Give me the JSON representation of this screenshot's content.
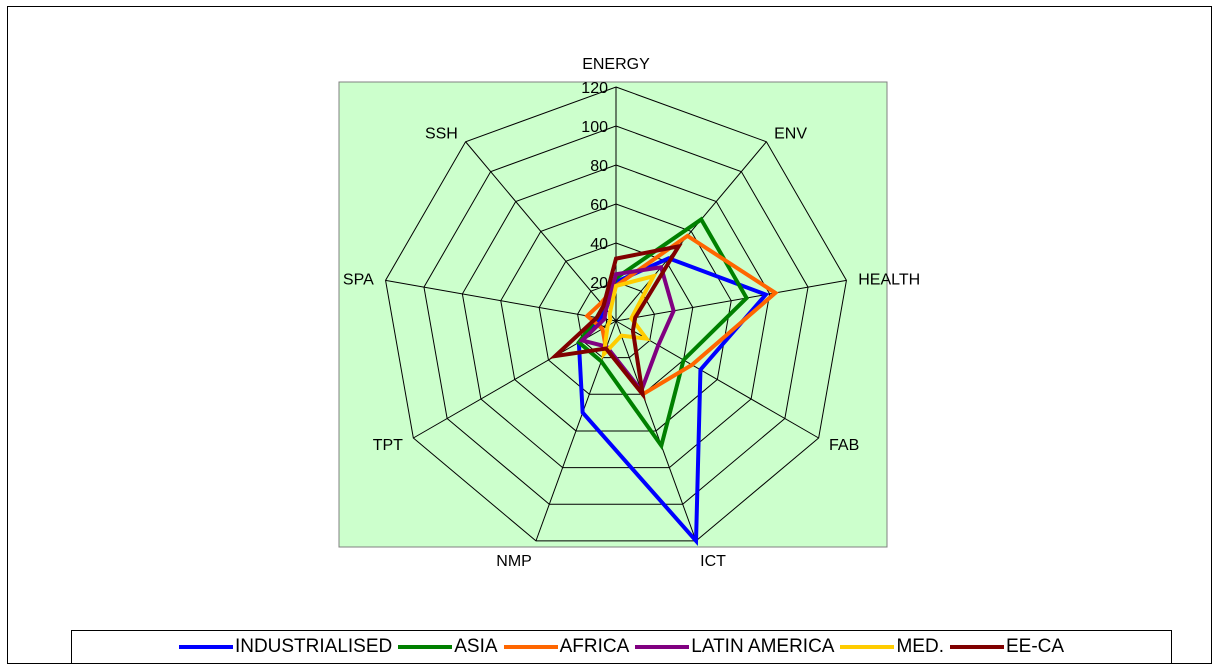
{
  "chart_data": {
    "type": "radar",
    "axes": [
      "ENERGY",
      "ENV",
      "HEALTH",
      "FAB",
      "ICT",
      "NMP",
      "TPT",
      "SPA",
      "SSH"
    ],
    "radial_ticks": [
      "0",
      "20",
      "40",
      "60",
      "80",
      "100",
      "120"
    ],
    "rlim": [
      0,
      120
    ],
    "background": "#ccffcc",
    "series": [
      {
        "name": "INDUSTRIALISED",
        "color": "#0000ff",
        "values": [
          20,
          42,
          78,
          50,
          120,
          50,
          22,
          8,
          8
        ]
      },
      {
        "name": "ASIA",
        "color": "#008000",
        "values": [
          22,
          68,
          68,
          40,
          68,
          22,
          22,
          10,
          10
        ]
      },
      {
        "name": "AFRICA",
        "color": "#ff6600",
        "values": [
          18,
          57,
          83,
          45,
          40,
          15,
          8,
          15,
          12
        ]
      },
      {
        "name": "LATIN AMERICA",
        "color": "#800080",
        "values": [
          24,
          36,
          30,
          25,
          38,
          14,
          20,
          6,
          8
        ]
      },
      {
        "name": "MED.",
        "color": "#ffcc00",
        "values": [
          18,
          30,
          8,
          18,
          8,
          18,
          5,
          3,
          5
        ]
      },
      {
        "name": "EE-CA",
        "color": "#800000",
        "values": [
          32,
          50,
          10,
          10,
          40,
          15,
          36,
          10,
          10
        ]
      }
    ],
    "legend_position": "bottom"
  }
}
